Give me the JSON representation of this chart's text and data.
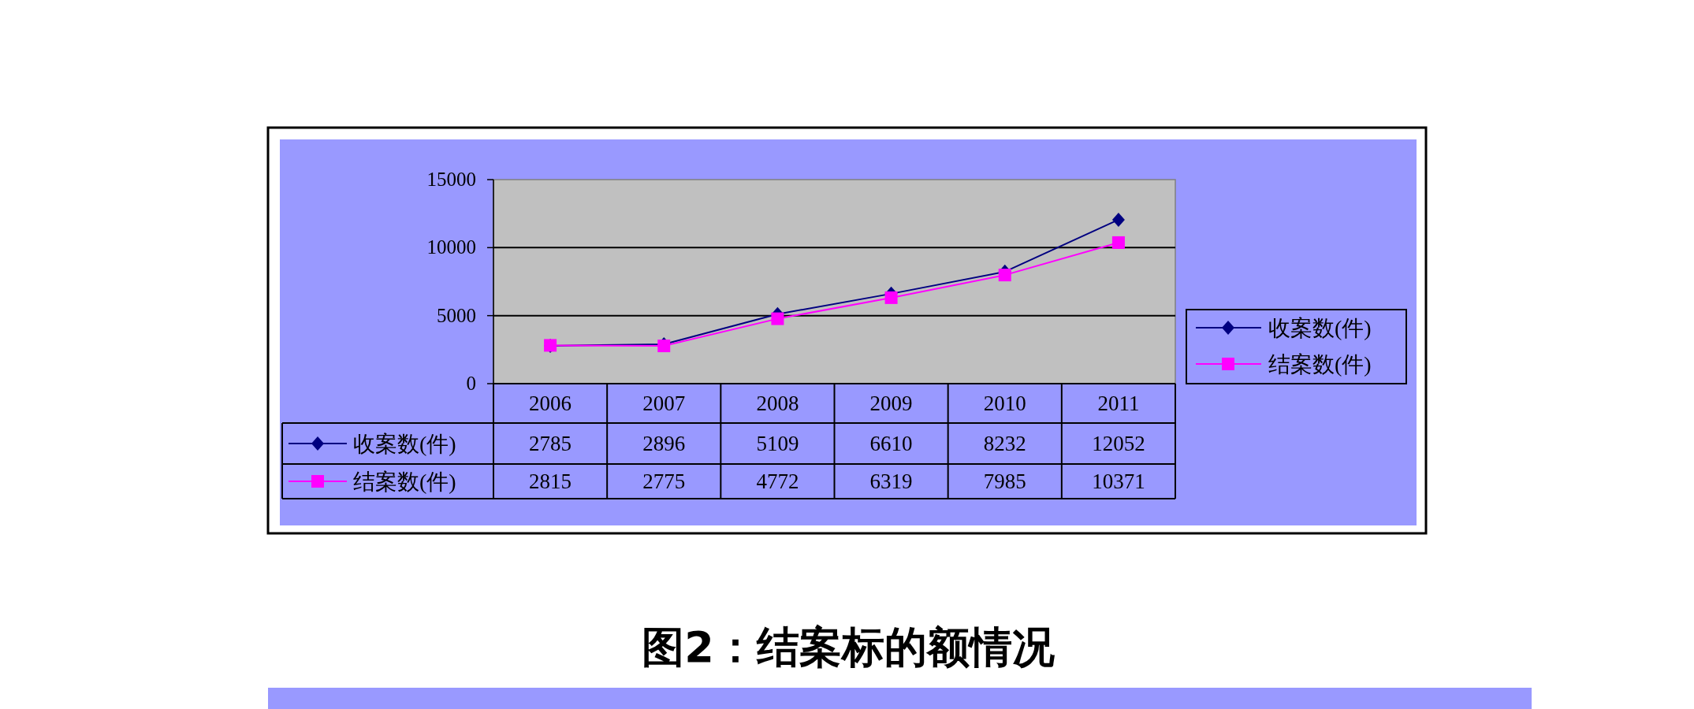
{
  "chart_data": {
    "type": "line",
    "categories": [
      "2006",
      "2007",
      "2008",
      "2009",
      "2010",
      "2011"
    ],
    "series": [
      {
        "name": "收案数(件)",
        "color": "#000080",
        "marker": "diamond",
        "values": [
          2785,
          2896,
          5109,
          6610,
          8232,
          12052
        ]
      },
      {
        "name": "结案数(件)",
        "color": "#ff00ff",
        "marker": "square",
        "values": [
          2815,
          2775,
          4772,
          6319,
          7985,
          10371
        ]
      }
    ],
    "ylim": [
      0,
      15000
    ],
    "yticks": [
      0,
      5000,
      10000,
      15000
    ],
    "grid": "y",
    "legend": "right",
    "data_labels": true,
    "annotations": [
      "图2：结案标的额情况"
    ]
  }
}
